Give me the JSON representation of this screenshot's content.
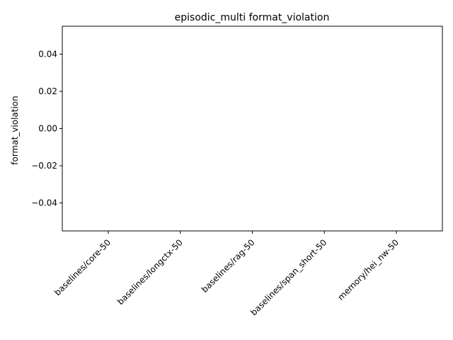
{
  "chart_data": {
    "type": "bar",
    "title": "episodic_multi format_violation",
    "xlabel": "",
    "ylabel": "format_violation",
    "categories": [
      "baselines/core-50",
      "baselines/longctx-50",
      "baselines/rag-50",
      "baselines/span_short-50",
      "memory/hei_nw-50"
    ],
    "values": [
      0,
      0,
      0,
      0,
      0
    ],
    "ylim": [
      -0.055,
      0.055
    ],
    "yticks": [
      -0.04,
      -0.02,
      0.0,
      0.02,
      0.04
    ],
    "ytick_labels": [
      "−0.04",
      "−0.02",
      "0.00",
      "0.02",
      "0.04"
    ],
    "grid": false,
    "legend": "none"
  }
}
